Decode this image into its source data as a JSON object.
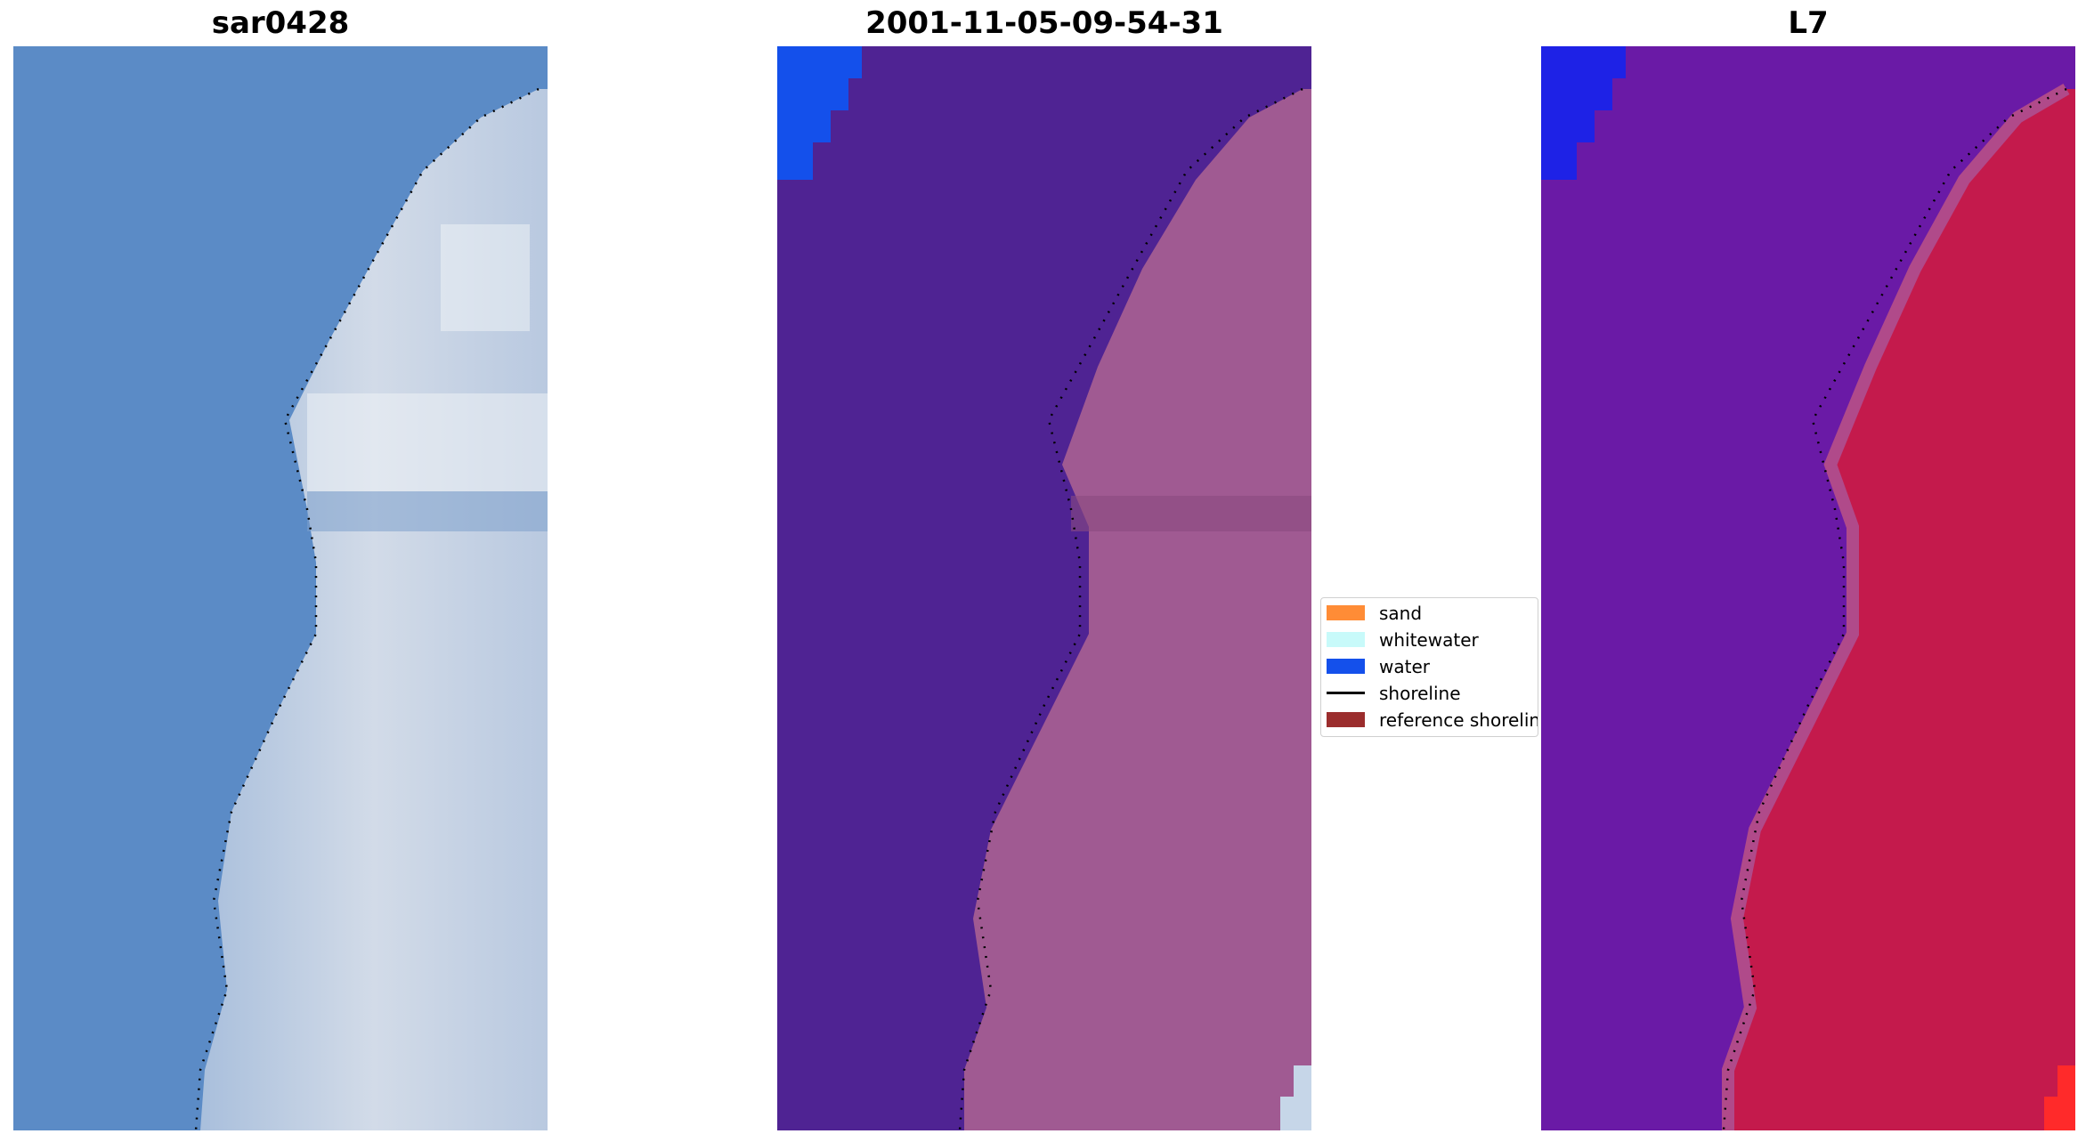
{
  "panels": [
    {
      "title": "sar0428"
    },
    {
      "title": "2001-11-05-09-54-31"
    },
    {
      "title": "L7"
    }
  ],
  "legend": {
    "items": [
      {
        "label": "sand",
        "color": "#ff8c36"
      },
      {
        "label": "whitewater",
        "color": "#c8fafa"
      },
      {
        "label": "water",
        "color": "#1450eb"
      },
      {
        "label": "shoreline",
        "color": "#000000"
      },
      {
        "label": "reference shoreline",
        "color": "#9b2d2d"
      }
    ]
  },
  "colors": {
    "rgb_water": "#5a8ac8",
    "rgb_land": "#c8d4e4",
    "class_water": "#4f2393",
    "class_land": "#a05a92",
    "class_water_patch": "#1450eb",
    "false_water": "#6a1aa6",
    "false_land": "#c41a4c"
  }
}
